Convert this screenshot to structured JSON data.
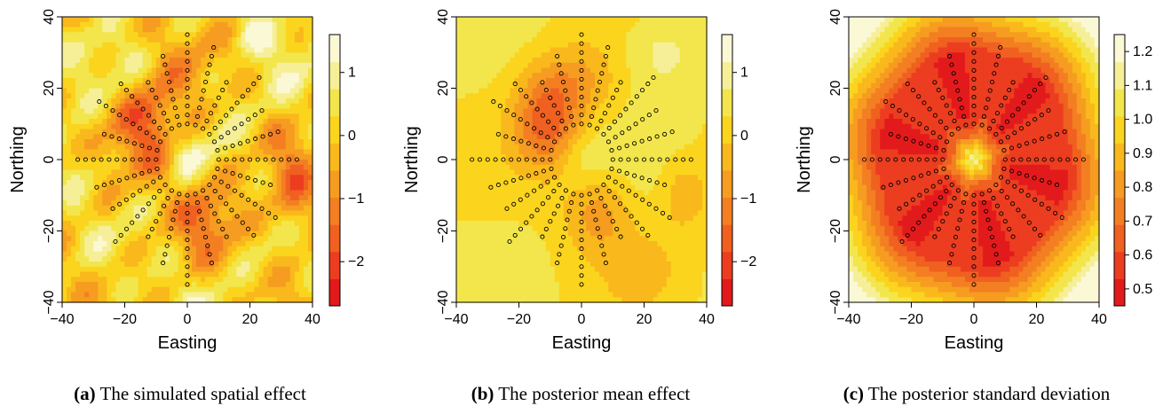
{
  "chart_data": [
    {
      "type": "heatmap",
      "panel_label": "(a)",
      "caption": "The  simulated  spatial effect",
      "xlabel": "Easting",
      "ylabel": "Northing",
      "xlim": [
        -40,
        40
      ],
      "ylim": [
        -40,
        40
      ],
      "x_ticks": [
        -40,
        -20,
        0,
        20,
        40
      ],
      "y_ticks": [
        -40,
        -20,
        0,
        20,
        40
      ],
      "colorbar": {
        "min": -2.7,
        "max": 1.6,
        "ticks": [
          -2,
          -1,
          0,
          1
        ],
        "tick_labels": [
          "−2",
          "−1",
          "0",
          "1"
        ]
      }
    },
    {
      "type": "heatmap",
      "panel_label": "(b)",
      "caption": "The posterior mean effect",
      "xlabel": "Easting",
      "ylabel": "Northing",
      "xlim": [
        -40,
        40
      ],
      "ylim": [
        -40,
        40
      ],
      "x_ticks": [
        -40,
        -20,
        0,
        20,
        40
      ],
      "y_ticks": [
        -40,
        -20,
        0,
        20,
        40
      ],
      "colorbar": {
        "min": -2.7,
        "max": 1.6,
        "ticks": [
          -2,
          -1,
          0,
          1
        ],
        "tick_labels": [
          "−2",
          "−1",
          "0",
          "1"
        ]
      }
    },
    {
      "type": "heatmap",
      "panel_label": "(c)",
      "caption": "The  posterior standard deviation",
      "xlabel": "Easting",
      "ylabel": "Northing",
      "xlim": [
        -40,
        40
      ],
      "ylim": [
        -40,
        40
      ],
      "x_ticks": [
        -40,
        -20,
        0,
        20,
        40
      ],
      "y_ticks": [
        -40,
        -20,
        0,
        20,
        40
      ],
      "colorbar": {
        "min": 0.45,
        "max": 1.25,
        "ticks": [
          0.5,
          0.6,
          0.7,
          0.8,
          0.9,
          1.0,
          1.1,
          1.2
        ],
        "tick_labels": [
          "0.5",
          "0.6",
          "0.7",
          "0.8",
          "0.9",
          "1.0",
          "1.1",
          "1.2"
        ]
      }
    }
  ],
  "stations": {
    "spokes": 24,
    "radii": [
      10,
      12.5,
      15,
      17.5,
      20,
      22.5,
      25,
      27.5,
      30,
      32.5,
      35
    ],
    "spoke_max_radius": [
      35,
      30,
      27.5,
      32.5,
      25,
      32.5,
      35,
      30,
      25,
      30,
      32.5,
      27.5,
      35,
      30,
      27.5,
      32.5,
      25,
      30,
      35,
      30,
      25,
      30,
      32.5,
      27.5
    ]
  },
  "colors": {
    "heat": [
      "#e31a1c",
      "#ec3d20",
      "#f06020",
      "#f37f22",
      "#f69c20",
      "#f9b81c",
      "#fbd41e",
      "#f2e64c",
      "#f6ef98",
      "#fbf8d6"
    ],
    "station": "#000000"
  }
}
